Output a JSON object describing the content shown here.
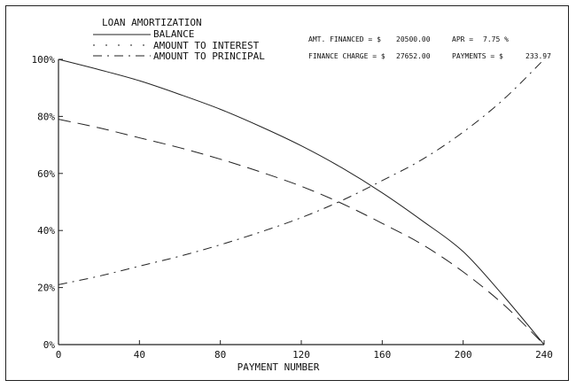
{
  "chart_data": {
    "type": "line",
    "title": "LOAN AMORTIZATION",
    "xlabel": "PAYMENT NUMBER",
    "ylabel": "",
    "xlim": [
      0,
      240
    ],
    "ylim": [
      0,
      100
    ],
    "x_ticks": [
      0,
      40,
      80,
      120,
      160,
      200,
      240
    ],
    "x_tick_labels": [
      "0",
      "40",
      "80",
      "120",
      "160",
      "200",
      "240"
    ],
    "y_ticks": [
      0,
      20,
      40,
      60,
      80,
      100
    ],
    "y_tick_labels": [
      "0%",
      "20%",
      "40%",
      "60%",
      "80%",
      "100%"
    ],
    "grid": false,
    "legend_position": "top-left",
    "info": {
      "amt_financed_label": "AMT. FINANCED = $",
      "amt_financed_value": "20500.00",
      "apr_label": "APR =",
      "apr_value": "7.75 %",
      "finance_charge_label": "FINANCE CHARGE = $",
      "finance_charge_value": "27652.00",
      "payments_label": "PAYMENTS = $",
      "payments_value": "233.97"
    },
    "x": [
      0,
      20,
      40,
      60,
      80,
      100,
      120,
      140,
      160,
      180,
      200,
      220,
      240
    ],
    "series": [
      {
        "name": "BALANCE",
        "style": "solid",
        "values": [
          100,
          96.4,
          92.5,
          87.7,
          82.5,
          76.4,
          69.7,
          62.0,
          53.2,
          43.3,
          32.6,
          17.0,
          0
        ]
      },
      {
        "name": "AMOUNT TO INTEREST",
        "style": "dashed",
        "values": [
          79,
          76,
          72.5,
          69,
          65,
          60.5,
          55.5,
          49.5,
          42.5,
          35,
          25.5,
          14,
          0
        ]
      },
      {
        "name": "AMOUNT TO PRINCIPAL",
        "style": "dash-dot",
        "values": [
          21,
          24,
          27.5,
          31,
          35,
          39.5,
          44.5,
          50.5,
          57.5,
          65,
          74.5,
          86,
          100
        ]
      }
    ]
  }
}
